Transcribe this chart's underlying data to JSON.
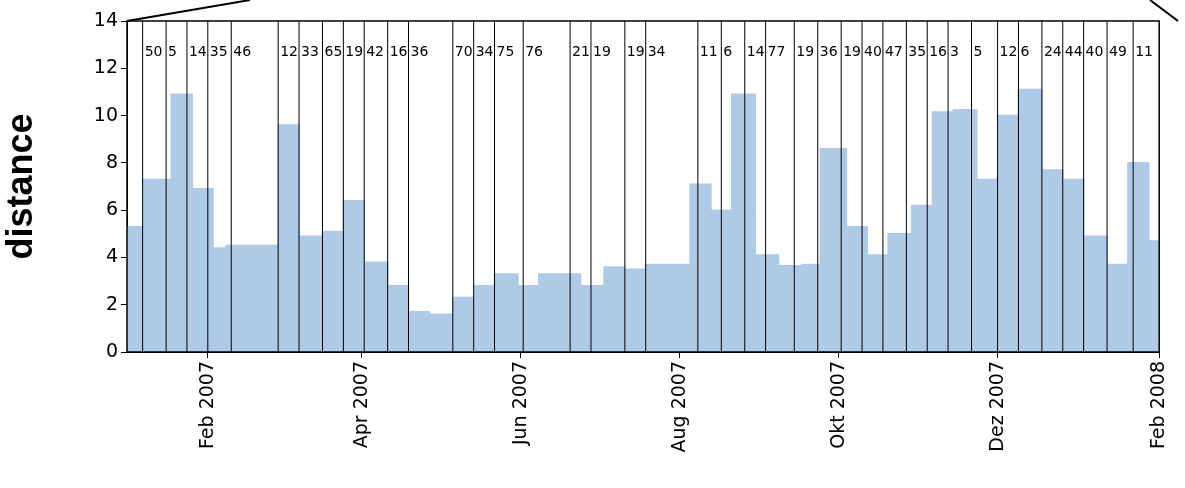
{
  "chart_data": {
    "type": "area",
    "ylabel": "distance",
    "xlim": [
      "2007-01-01",
      "2008-02-01"
    ],
    "ylim": [
      0,
      14
    ],
    "yticks": [
      0,
      2,
      4,
      6,
      8,
      10,
      12,
      14
    ],
    "xticks": [
      {
        "value": "2007-02-01",
        "label": "Feb 2007"
      },
      {
        "value": "2007-04-01",
        "label": "Apr 2007"
      },
      {
        "value": "2007-06-01",
        "label": "Jun 2007"
      },
      {
        "value": "2007-08-01",
        "label": "Aug 2007"
      },
      {
        "value": "2007-10-01",
        "label": "Okt 2007"
      },
      {
        "value": "2007-12-01",
        "label": "Dez 2007"
      },
      {
        "value": "2008-02-01",
        "label": "Feb 2008"
      }
    ],
    "grid": false,
    "legend": false,
    "series": [
      {
        "color": "#aecae6",
        "x": [
          "2007-01-01",
          "2007-01-07",
          "2007-01-07",
          "2007-01-18",
          "2007-01-18",
          "2007-01-26",
          "2007-01-26",
          "2007-02-03",
          "2007-02-03",
          "2007-02-08",
          "2007-02-08",
          "2007-02-28",
          "2007-02-28",
          "2007-03-08",
          "2007-03-08",
          "2007-03-17",
          "2007-03-17",
          "2007-03-25",
          "2007-03-25",
          "2007-04-02",
          "2007-04-02",
          "2007-04-11",
          "2007-04-11",
          "2007-04-19",
          "2007-04-19",
          "2007-04-27",
          "2007-04-27",
          "2007-05-06",
          "2007-05-06",
          "2007-05-14",
          "2007-05-14",
          "2007-05-22",
          "2007-05-22",
          "2007-05-31",
          "2007-05-31",
          "2007-06-08",
          "2007-06-08",
          "2007-06-24",
          "2007-06-24",
          "2007-07-03",
          "2007-07-03",
          "2007-07-11",
          "2007-07-11",
          "2007-07-19",
          "2007-07-19",
          "2007-08-05",
          "2007-08-05",
          "2007-08-13",
          "2007-08-13",
          "2007-08-21",
          "2007-08-21",
          "2007-08-30",
          "2007-08-30",
          "2007-09-08",
          "2007-09-08",
          "2007-09-17",
          "2007-09-17",
          "2007-09-24",
          "2007-09-24",
          "2007-10-04",
          "2007-10-04",
          "2007-10-12",
          "2007-10-12",
          "2007-10-20",
          "2007-10-20",
          "2007-10-29",
          "2007-10-29",
          "2007-11-06",
          "2007-11-06",
          "2007-11-14",
          "2007-11-14",
          "2007-11-23",
          "2007-11-23",
          "2007-12-01",
          "2007-12-01",
          "2007-12-09",
          "2007-12-09",
          "2007-12-18",
          "2007-12-18",
          "2007-12-26",
          "2007-12-26",
          "2008-01-03",
          "2008-01-03",
          "2008-01-12",
          "2008-01-12",
          "2008-01-20",
          "2008-01-20",
          "2008-01-28",
          "2008-01-28",
          "2008-02-01"
        ],
        "values": [
          5.3,
          5.3,
          7.3,
          7.3,
          10.9,
          10.9,
          6.9,
          6.9,
          4.4,
          4.4,
          4.5,
          4.5,
          9.6,
          9.6,
          4.9,
          4.9,
          5.1,
          5.1,
          6.4,
          6.4,
          3.8,
          3.8,
          2.8,
          2.8,
          1.7,
          1.7,
          1.6,
          1.6,
          2.3,
          2.3,
          2.8,
          2.8,
          3.3,
          3.3,
          2.8,
          2.8,
          3.3,
          3.3,
          2.8,
          2.8,
          3.6,
          3.6,
          3.5,
          3.5,
          3.7,
          3.7,
          7.1,
          7.1,
          6.0,
          6.0,
          10.9,
          10.9,
          4.1,
          4.1,
          3.65,
          3.65,
          3.7,
          3.7,
          8.6,
          8.6,
          5.3,
          5.3,
          4.1,
          4.1,
          5.0,
          5.0,
          6.2,
          6.2,
          10.15,
          10.15,
          10.25,
          10.25,
          7.3,
          7.3,
          10.0,
          10.0,
          11.1,
          11.1,
          7.7,
          7.7,
          7.3,
          7.3,
          4.9,
          4.9,
          3.7,
          3.7,
          8.0,
          8.0,
          4.7,
          4.7
        ]
      }
    ],
    "ref_lines": [
      {
        "axis": "x",
        "value": "2007-01-07",
        "label": "50"
      },
      {
        "axis": "x",
        "value": "2007-01-16",
        "label": "5"
      },
      {
        "axis": "x",
        "value": "2007-01-24",
        "label": "14"
      },
      {
        "axis": "x",
        "value": "2007-02-01",
        "label": "35"
      },
      {
        "axis": "x",
        "value": "2007-02-10",
        "label": "46"
      },
      {
        "axis": "x",
        "value": "2007-02-28",
        "label": "12"
      },
      {
        "axis": "x",
        "value": "2007-03-08",
        "label": "33"
      },
      {
        "axis": "x",
        "value": "2007-03-17",
        "label": "65"
      },
      {
        "axis": "x",
        "value": "2007-03-25",
        "label": "19"
      },
      {
        "axis": "x",
        "value": "2007-04-02",
        "label": "42"
      },
      {
        "axis": "x",
        "value": "2007-04-11",
        "label": "16"
      },
      {
        "axis": "x",
        "value": "2007-04-19",
        "label": "36"
      },
      {
        "axis": "x",
        "value": "2007-05-06",
        "label": "70"
      },
      {
        "axis": "x",
        "value": "2007-05-14",
        "label": "34"
      },
      {
        "axis": "x",
        "value": "2007-05-22",
        "label": "75"
      },
      {
        "axis": "x",
        "value": "2007-06-02",
        "label": "76"
      },
      {
        "axis": "x",
        "value": "2007-06-20",
        "label": "21"
      },
      {
        "axis": "x",
        "value": "2007-06-28",
        "label": "19"
      },
      {
        "axis": "x",
        "value": "2007-07-11",
        "label": "19"
      },
      {
        "axis": "x",
        "value": "2007-07-19",
        "label": "34"
      },
      {
        "axis": "x",
        "value": "2007-08-08",
        "label": "11"
      },
      {
        "axis": "x",
        "value": "2007-08-17",
        "label": "6"
      },
      {
        "axis": "x",
        "value": "2007-08-26",
        "label": "14"
      },
      {
        "axis": "x",
        "value": "2007-09-03",
        "label": "77"
      },
      {
        "axis": "x",
        "value": "2007-09-14",
        "label": "19"
      },
      {
        "axis": "x",
        "value": "2007-09-23",
        "label": "36"
      },
      {
        "axis": "x",
        "value": "2007-10-02",
        "label": "19"
      },
      {
        "axis": "x",
        "value": "2007-10-10",
        "label": "40"
      },
      {
        "axis": "x",
        "value": "2007-10-18",
        "label": "47"
      },
      {
        "axis": "x",
        "value": "2007-10-27",
        "label": "35"
      },
      {
        "axis": "x",
        "value": "2007-11-04",
        "label": "16"
      },
      {
        "axis": "x",
        "value": "2007-11-12",
        "label": "3"
      },
      {
        "axis": "x",
        "value": "2007-11-21",
        "label": "5"
      },
      {
        "axis": "x",
        "value": "2007-12-01",
        "label": "12"
      },
      {
        "axis": "x",
        "value": "2007-12-09",
        "label": "6"
      },
      {
        "axis": "x",
        "value": "2007-12-18",
        "label": "24"
      },
      {
        "axis": "x",
        "value": "2007-12-26",
        "label": "44"
      },
      {
        "axis": "x",
        "value": "2008-01-03",
        "label": "40"
      },
      {
        "axis": "x",
        "value": "2008-01-12",
        "label": "49"
      },
      {
        "axis": "x",
        "value": "2008-01-22",
        "label": "11"
      }
    ]
  }
}
